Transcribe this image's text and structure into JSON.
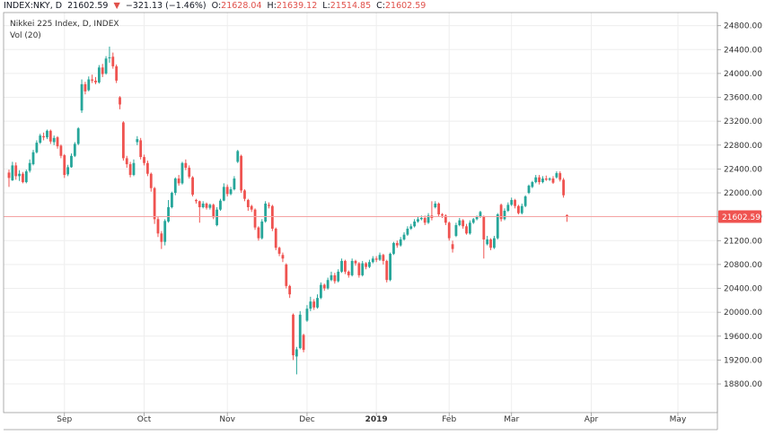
{
  "header": {
    "symbol": "INDEX:NKY, D",
    "last": "21602.59",
    "arrow": "▼",
    "change": "−321.13 (−1.46%)",
    "open_label": "O:",
    "open": "21628.04",
    "high_label": "H:",
    "high": "21639.12",
    "low_label": "L:",
    "low": "21514.85",
    "close_label": "C:",
    "close": "21602.59"
  },
  "legend": {
    "title": "Nikkei 225 Index, D, INDEX",
    "volume": "Vol (20)"
  },
  "colors": {
    "up": "#26a69a",
    "down": "#ef5350",
    "price_line": "#f5a3a3",
    "price_tag": "#ef5350",
    "grid": "#eeeeee",
    "axis": "#999999"
  },
  "chart_data": {
    "type": "candlestick",
    "y_axis": {
      "ticks": [
        18800,
        19200,
        19600,
        20000,
        20400,
        20800,
        21200,
        21600,
        22000,
        22400,
        22800,
        23200,
        23600,
        24000,
        24400,
        24800
      ],
      "tick_labels": [
        "18800.00",
        "19200.00",
        "19600.00",
        "20000.00",
        "20400.00",
        "20800.00",
        "21200.00",
        "21600.00",
        "22000.00",
        "22400.00",
        "22800.00",
        "23200.00",
        "23600.00",
        "24000.00",
        "24400.00",
        "24800.00"
      ],
      "range": [
        18320,
        25020
      ],
      "last_price": 21602.59,
      "last_price_label": "21602.59"
    },
    "x_axis": {
      "labels": [
        "Sep",
        "Oct",
        "Nov",
        "Dec",
        "2019",
        "Feb",
        "Mar",
        "Apr",
        "May"
      ],
      "label_bar_index": [
        16,
        39,
        63,
        86,
        106,
        127,
        145,
        168,
        193
      ]
    },
    "candles": [
      [
        22340,
        22250,
        22100,
        22390
      ],
      [
        22210,
        22460,
        22200,
        22520
      ],
      [
        22460,
        22280,
        22220,
        22510
      ],
      [
        22280,
        22320,
        22200,
        22380
      ],
      [
        22320,
        22180,
        22160,
        22350
      ],
      [
        22180,
        22360,
        22160,
        22390
      ],
      [
        22370,
        22500,
        22340,
        22560
      ],
      [
        22480,
        22680,
        22460,
        22720
      ],
      [
        22680,
        22840,
        22660,
        22880
      ],
      [
        22840,
        22960,
        22820,
        22990
      ],
      [
        22950,
        22930,
        22880,
        23010
      ],
      [
        22930,
        23040,
        22900,
        23060
      ],
      [
        23040,
        22860,
        22820,
        23060
      ],
      [
        22850,
        22920,
        22800,
        22960
      ],
      [
        22930,
        22780,
        22740,
        22950
      ],
      [
        22790,
        22620,
        22580,
        22810
      ],
      [
        22630,
        22300,
        22250,
        22650
      ],
      [
        22310,
        22430,
        22280,
        22470
      ],
      [
        22430,
        22620,
        22420,
        22660
      ],
      [
        22620,
        22820,
        22600,
        22850
      ],
      [
        22820,
        23080,
        22800,
        23100
      ],
      [
        23380,
        23820,
        23340,
        23900
      ],
      [
        23820,
        23700,
        23650,
        23860
      ],
      [
        23720,
        23900,
        23700,
        23950
      ],
      [
        23900,
        23880,
        23840,
        23980
      ],
      [
        23880,
        23850,
        23820,
        23940
      ],
      [
        23850,
        24100,
        23830,
        24140
      ],
      [
        24100,
        23990,
        23940,
        24160
      ],
      [
        24000,
        24250,
        23980,
        24290
      ],
      [
        24260,
        24270,
        24180,
        24450
      ],
      [
        24280,
        24120,
        24080,
        24350
      ],
      [
        24120,
        23880,
        23840,
        24150
      ],
      [
        23600,
        23480,
        23400,
        23620
      ],
      [
        23180,
        22580,
        22540,
        23200
      ],
      [
        22580,
        22480,
        22420,
        22620
      ],
      [
        22480,
        22300,
        22260,
        22520
      ],
      [
        22300,
        22500,
        22280,
        22560
      ],
      [
        22850,
        22900,
        22800,
        22950
      ],
      [
        22880,
        22600,
        22560,
        22920
      ],
      [
        22600,
        22500,
        22460,
        22640
      ],
      [
        22500,
        22320,
        22280,
        22540
      ],
      [
        22320,
        22080,
        22020,
        22340
      ],
      [
        22080,
        21560,
        21480,
        22100
      ],
      [
        21560,
        21320,
        21260,
        21600
      ],
      [
        21320,
        21180,
        21060,
        21360
      ],
      [
        21180,
        21530,
        21120,
        21560
      ],
      [
        21520,
        21760,
        21500,
        21880
      ],
      [
        21760,
        22000,
        21740,
        22020
      ],
      [
        22000,
        22240,
        21960,
        22260
      ],
      [
        22240,
        22160,
        22120,
        22300
      ],
      [
        22160,
        22500,
        22140,
        22520
      ],
      [
        22500,
        22420,
        22380,
        22560
      ],
      [
        22420,
        22270,
        22240,
        22460
      ],
      [
        22260,
        21970,
        21940,
        22280
      ],
      [
        21880,
        21860,
        21820,
        21900
      ],
      [
        21860,
        21760,
        21500,
        21870
      ],
      [
        21760,
        21820,
        21740,
        21860
      ],
      [
        21820,
        21750,
        21720,
        21840
      ],
      [
        21750,
        21800,
        21720,
        21820
      ],
      [
        21800,
        21590,
        21560,
        21820
      ],
      [
        21460,
        21720,
        21440,
        21760
      ],
      [
        21720,
        21870,
        21700,
        21900
      ],
      [
        21870,
        22100,
        21860,
        22160
      ],
      [
        22100,
        21980,
        21940,
        22140
      ],
      [
        21980,
        22060,
        21960,
        22100
      ],
      [
        22060,
        22240,
        22040,
        22280
      ],
      [
        22520,
        22700,
        22500,
        22720
      ],
      [
        22620,
        22040,
        22000,
        22640
      ],
      [
        22040,
        21900,
        21860,
        22060
      ],
      [
        21880,
        21760,
        21700,
        21900
      ],
      [
        21780,
        21720,
        21680,
        21800
      ],
      [
        21720,
        21420,
        21380,
        21740
      ],
      [
        21420,
        21240,
        21200,
        21440
      ],
      [
        21240,
        21520,
        21220,
        21560
      ],
      [
        21520,
        21820,
        21500,
        21860
      ],
      [
        21800,
        21780,
        21740,
        21840
      ],
      [
        21780,
        21400,
        21360,
        21800
      ],
      [
        21400,
        21080,
        21040,
        21420
      ],
      [
        21080,
        20980,
        20940,
        21100
      ],
      [
        20960,
        20900,
        20840,
        21000
      ],
      [
        20800,
        20440,
        20400,
        20820
      ],
      [
        20440,
        20300,
        20240,
        20460
      ],
      [
        19960,
        19280,
        19200,
        19980
      ],
      [
        19260,
        19380,
        18960,
        19420
      ],
      [
        19400,
        19960,
        19380,
        20020
      ],
      [
        19620,
        19370,
        19330,
        19640
      ],
      [
        19860,
        20060,
        19840,
        20120
      ],
      [
        20060,
        20180,
        20020,
        20260
      ],
      [
        20180,
        20080,
        20040,
        20220
      ],
      [
        20080,
        20240,
        20060,
        20300
      ],
      [
        20240,
        20460,
        20220,
        20500
      ],
      [
        20460,
        20400,
        20360,
        20480
      ],
      [
        20400,
        20540,
        20380,
        20580
      ],
      [
        20540,
        20620,
        20520,
        20680
      ],
      [
        20620,
        20520,
        20480,
        20660
      ],
      [
        20520,
        20680,
        20500,
        20720
      ],
      [
        20680,
        20860,
        20660,
        20900
      ],
      [
        20860,
        20680,
        20640,
        20880
      ],
      [
        20680,
        20620,
        20580,
        20700
      ],
      [
        20620,
        20860,
        20600,
        20900
      ],
      [
        20860,
        20820,
        20780,
        20880
      ],
      [
        20820,
        20620,
        20580,
        20840
      ],
      [
        20620,
        20820,
        20600,
        20860
      ],
      [
        20820,
        20760,
        20720,
        20840
      ],
      [
        20760,
        20840,
        20740,
        20880
      ],
      [
        20840,
        20900,
        20820,
        20940
      ],
      [
        20900,
        20880,
        20840,
        20940
      ],
      [
        20880,
        20960,
        20860,
        21000
      ],
      [
        20960,
        20860,
        20800,
        20980
      ],
      [
        20860,
        20540,
        20500,
        20880
      ],
      [
        20540,
        20980,
        20520,
        21000
      ],
      [
        20980,
        21160,
        20960,
        21180
      ],
      [
        21160,
        21120,
        21080,
        21200
      ],
      [
        21120,
        21220,
        21100,
        21260
      ],
      [
        21220,
        21300,
        21200,
        21340
      ],
      [
        21300,
        21400,
        21280,
        21440
      ],
      [
        21400,
        21440,
        21380,
        21480
      ],
      [
        21440,
        21520,
        21420,
        21560
      ],
      [
        21520,
        21560,
        21500,
        21600
      ],
      [
        21560,
        21580,
        21540,
        21620
      ],
      [
        21580,
        21500,
        21460,
        21620
      ],
      [
        21500,
        21620,
        21480,
        21660
      ],
      [
        21620,
        21580,
        21540,
        21860
      ],
      [
        21760,
        21820,
        21740,
        21860
      ],
      [
        21820,
        21640,
        21600,
        21840
      ],
      [
        21640,
        21620,
        21580,
        21660
      ],
      [
        21620,
        21500,
        21460,
        21640
      ],
      [
        21500,
        21240,
        21200,
        21520
      ],
      [
        21140,
        21060,
        21000,
        21200
      ],
      [
        21280,
        21460,
        21260,
        21500
      ],
      [
        21460,
        21540,
        21440,
        21580
      ],
      [
        21540,
        21440,
        21400,
        21560
      ],
      [
        21440,
        21320,
        21300,
        21480
      ],
      [
        21320,
        21500,
        21300,
        21540
      ],
      [
        21500,
        21560,
        21480,
        21580
      ],
      [
        21560,
        21600,
        21540,
        21620
      ],
      [
        21600,
        21680,
        21580,
        21700
      ],
      [
        21600,
        21220,
        20900,
        21620
      ],
      [
        21140,
        21220,
        21120,
        21280
      ],
      [
        21220,
        21080,
        21040,
        21240
      ],
      [
        21080,
        21240,
        21060,
        21280
      ],
      [
        21240,
        21640,
        21220,
        21660
      ],
      [
        21800,
        21560,
        21520,
        21820
      ],
      [
        21560,
        21700,
        21540,
        21740
      ],
      [
        21700,
        21800,
        21680,
        21840
      ],
      [
        21800,
        21880,
        21780,
        21920
      ],
      [
        21880,
        21780,
        21740,
        21900
      ],
      [
        21780,
        21660,
        21640,
        21800
      ],
      [
        21660,
        21780,
        21640,
        21820
      ],
      [
        21780,
        21940,
        21760,
        21960
      ],
      [
        22000,
        22120,
        21980,
        22140
      ],
      [
        22100,
        22180,
        22080,
        22200
      ],
      [
        22180,
        22260,
        22160,
        22300
      ],
      [
        22260,
        22180,
        22140,
        22300
      ],
      [
        22180,
        22240,
        22160,
        22280
      ],
      [
        22240,
        22220,
        22200,
        22290
      ],
      [
        22220,
        22240,
        22200,
        22260
      ],
      [
        22240,
        22170,
        22150,
        22280
      ],
      [
        22260,
        22330,
        22240,
        22360
      ],
      [
        22330,
        22220,
        22190,
        22360
      ],
      [
        22220,
        21960,
        21920,
        22250
      ],
      [
        21628,
        21603,
        21515,
        21639
      ]
    ]
  }
}
